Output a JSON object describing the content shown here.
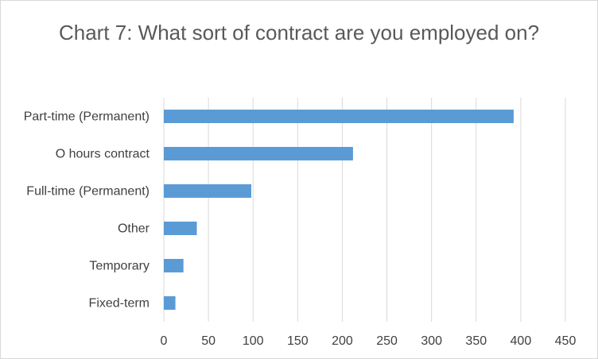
{
  "chart_data": {
    "type": "bar",
    "orientation": "horizontal",
    "title": "Chart 7: What sort of contract are you employed on?",
    "categories": [
      "Part-time (Permanent)",
      "O hours contract",
      "Full-time (Permanent)",
      "Other",
      "Temporary",
      "Fixed-term"
    ],
    "values": [
      392,
      212,
      98,
      37,
      22,
      13
    ],
    "xlim": [
      0,
      450
    ],
    "xticks": [
      0,
      50,
      100,
      150,
      200,
      250,
      300,
      350,
      400,
      450
    ],
    "grid": "vertical",
    "bar_color": "#5b9bd5",
    "legend": "none"
  }
}
